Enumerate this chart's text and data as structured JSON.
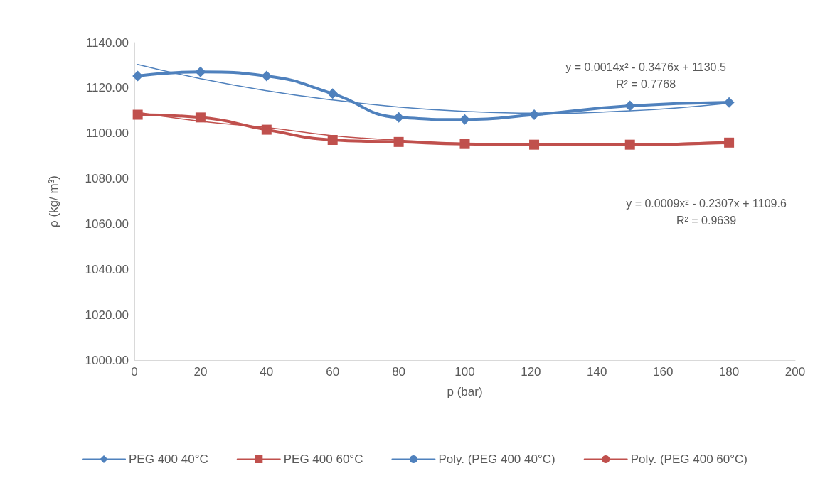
{
  "chart_data": {
    "type": "line",
    "xlabel": "p (bar)",
    "ylabel": "ρ (kg/ m³)",
    "x": [
      1,
      20,
      40,
      60,
      80,
      100,
      121,
      150,
      180
    ],
    "series": [
      {
        "name": "PEG 400 40°C",
        "color": "#4f81bd",
        "marker": "diamond",
        "values": [
          1125.3,
          1127.1,
          1125.3,
          1117.5,
          1107,
          1106.1,
          1108.2,
          1112.1,
          1113.6
        ]
      },
      {
        "name": "PEG 400 60°C",
        "color": "#c0504d",
        "marker": "square",
        "values": [
          1108.2,
          1107,
          1101.6,
          1097.1,
          1096.2,
          1095.3,
          1095,
          1095,
          1095.9
        ]
      },
      {
        "name": "Poly. (PEG 400 40°C)",
        "color": "#4f81bd",
        "marker": "none",
        "x": [
          1,
          20,
          40,
          60,
          80,
          100,
          121,
          150,
          180
        ],
        "values": [
          1130.4,
          1124.1,
          1118.8,
          1114.7,
          1111.6,
          1109.7,
          1108.9,
          1109.9,
          1113.3
        ]
      },
      {
        "name": "Poly. (PEG 400 60°C)",
        "color": "#c0504d",
        "marker": "none",
        "x": [
          1,
          20,
          40,
          60,
          80,
          100,
          121,
          150,
          180
        ],
        "values": [
          1109.3,
          1105.3,
          1102.6,
          1099,
          1097,
          1095.6,
          1095,
          1095.2,
          1096.4
        ]
      }
    ],
    "xlim": [
      0,
      200
    ],
    "xticks": [
      0,
      20,
      40,
      60,
      80,
      100,
      120,
      140,
      160,
      180,
      200
    ],
    "ylim": [
      1000,
      1140
    ],
    "yticks": [
      {
        "value": 1000,
        "label": "1000.00"
      },
      {
        "value": 1020,
        "label": "1020.00"
      },
      {
        "value": 1040,
        "label": "1040.00"
      },
      {
        "value": 1060,
        "label": "1060.00"
      },
      {
        "value": 1080,
        "label": "1080.00"
      },
      {
        "value": 1100,
        "label": "1100.00"
      },
      {
        "value": 1120,
        "label": "1120.00"
      },
      {
        "value": 1140,
        "label": "1140.00"
      }
    ],
    "annotations": [
      "y = 0.0014x² - 0.3476x + 1130.5\nR² = 0.7768",
      "y = 0.0009x² - 0.2307x + 1109.6\nR² = 0.9639"
    ],
    "grid": false,
    "legend": "bottom",
    "line_style": "solid"
  }
}
